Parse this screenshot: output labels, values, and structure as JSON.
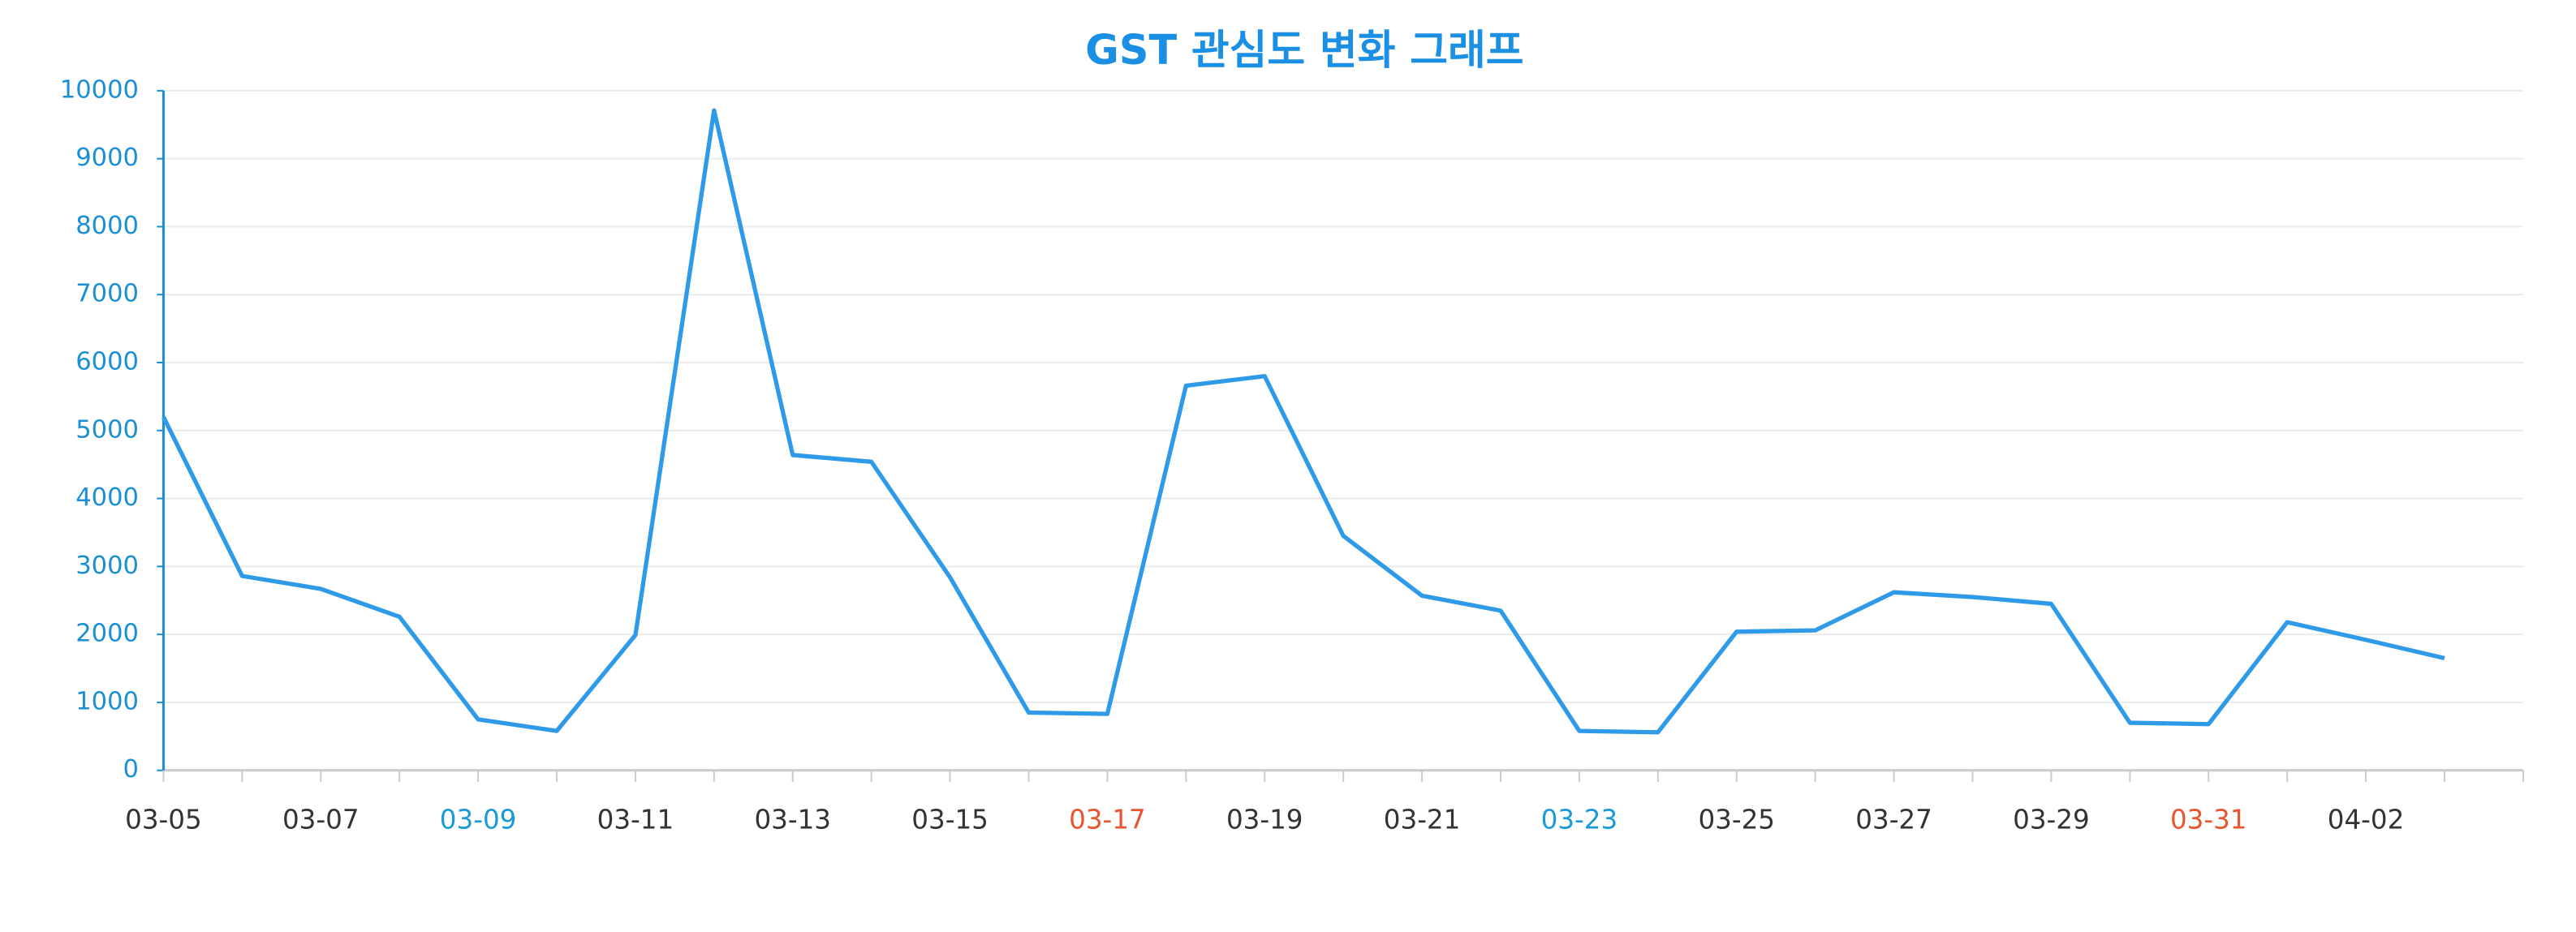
{
  "chart_data": {
    "type": "line",
    "title": "GST 관심도 변화 그래프",
    "categories": [
      "03-05",
      null,
      "03-07",
      null,
      "03-09",
      null,
      "03-11",
      null,
      "03-13",
      null,
      "03-15",
      null,
      "03-17",
      null,
      "03-19",
      null,
      "03-21",
      null,
      "03-23",
      null,
      "03-25",
      null,
      "03-27",
      null,
      "03-29",
      null,
      "03-31",
      null,
      "04-02",
      null
    ],
    "tick_label_colors": [
      "#333333",
      null,
      "#333333",
      null,
      "#1a9ad6",
      null,
      "#333333",
      null,
      "#333333",
      null,
      "#333333",
      null,
      "#e8552f",
      null,
      "#333333",
      null,
      "#333333",
      null,
      "#1a9ad6",
      null,
      "#333333",
      null,
      "#333333",
      null,
      "#333333",
      null,
      "#e8552f",
      null,
      "#333333",
      null
    ],
    "series": [
      {
        "name": "GST",
        "color": "#2f9be8",
        "values": [
          5200,
          2860,
          2670,
          2260,
          750,
          580,
          1990,
          9710,
          4640,
          4540,
          2840,
          850,
          830,
          5660,
          5800,
          3450,
          2570,
          2350,
          580,
          560,
          2040,
          2060,
          2620,
          2550,
          2450,
          700,
          680,
          2180,
          1920,
          1650
        ]
      }
    ],
    "ylim": [
      0,
      10000
    ],
    "yticks": [
      0,
      1000,
      2000,
      3000,
      4000,
      5000,
      6000,
      7000,
      8000,
      9000,
      10000
    ],
    "grid": true,
    "y_axis_color": "#1a8fd6",
    "title_color": "#1a8fe3"
  }
}
